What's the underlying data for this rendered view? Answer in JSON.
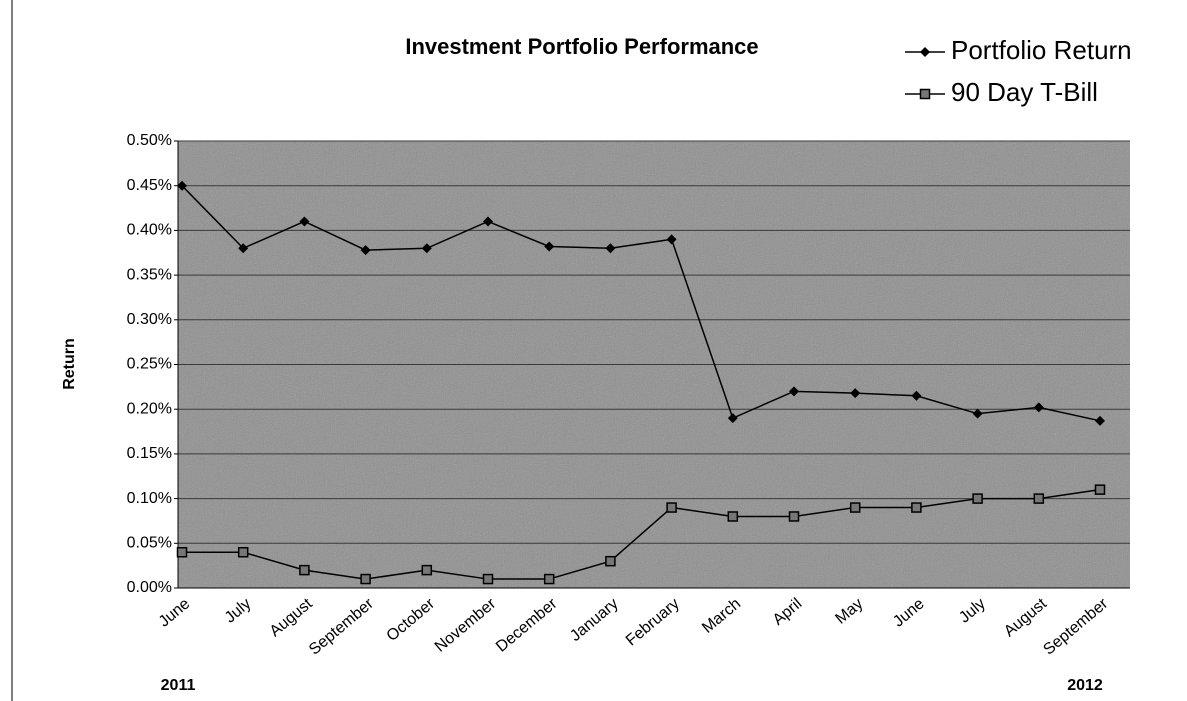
{
  "chart_data": {
    "type": "line",
    "title": "Investment Portfolio Performance",
    "y_label": "Return",
    "categories": [
      "June",
      "July",
      "August",
      "September",
      "October",
      "November",
      "December",
      "January",
      "February",
      "March",
      "April",
      "May",
      "June",
      "July",
      "August",
      "September"
    ],
    "annotations": [
      "2011",
      "2012"
    ],
    "series": [
      {
        "name": "Portfolio Return",
        "color": "#000000",
        "marker": "diamond",
        "values": [
          0.45,
          0.38,
          0.41,
          0.378,
          0.38,
          0.41,
          0.382,
          0.38,
          0.39,
          0.19,
          0.22,
          0.218,
          0.215,
          0.195,
          0.202,
          0.187
        ]
      },
      {
        "name": "90 Day T-Bill",
        "color": "#000000",
        "marker": "square",
        "values": [
          0.04,
          0.04,
          0.02,
          0.01,
          0.02,
          0.01,
          0.01,
          0.03,
          0.09,
          0.08,
          0.08,
          0.09,
          0.09,
          0.1,
          0.1,
          0.11
        ]
      }
    ],
    "ylim": [
      0,
      0.5
    ],
    "yticks": [
      {
        "value": 0,
        "label": "0.00%"
      },
      {
        "value": 0.05,
        "label": "0.05%"
      },
      {
        "value": 0.1,
        "label": "0.10%"
      },
      {
        "value": 0.15,
        "label": "0.15%"
      },
      {
        "value": 0.2,
        "label": "0.20%"
      },
      {
        "value": 0.25,
        "label": "0.25%"
      },
      {
        "value": 0.3,
        "label": "0.30%"
      },
      {
        "value": 0.35,
        "label": "0.35%"
      },
      {
        "value": 0.4,
        "label": "0.40%"
      },
      {
        "value": 0.45,
        "label": "0.45%"
      },
      {
        "value": 0.5,
        "label": "0.50%"
      }
    ],
    "grid": true,
    "legend": "top-right"
  }
}
